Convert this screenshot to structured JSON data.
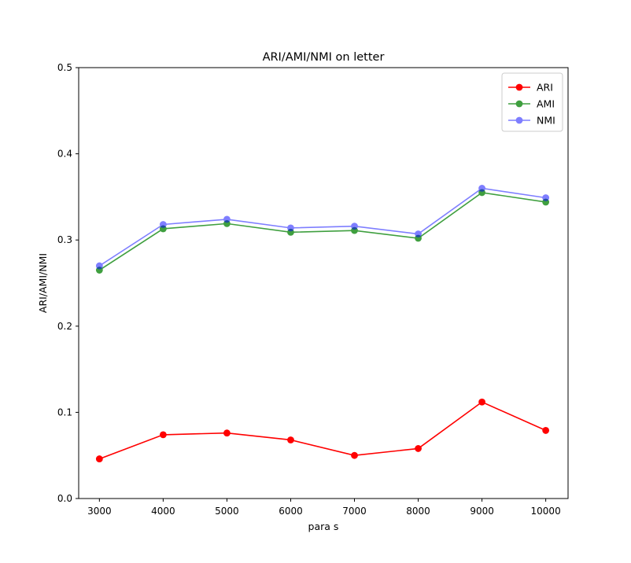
{
  "chart_data": {
    "type": "line",
    "title": "ARI/AMI/NMI on letter",
    "xlabel": "para s",
    "ylabel": "ARI/AMI/NMI",
    "x": [
      3000,
      4000,
      5000,
      6000,
      7000,
      8000,
      9000,
      10000
    ],
    "xlim": [
      2675,
      10350
    ],
    "ylim": [
      0.0,
      0.5
    ],
    "xticks": [
      "3000",
      "4000",
      "5000",
      "6000",
      "7000",
      "8000",
      "9000",
      "10000"
    ],
    "yticks": [
      "0.0",
      "0.1",
      "0.2",
      "0.3",
      "0.4",
      "0.5"
    ],
    "grid": false,
    "legend_position": "top-right",
    "series": [
      {
        "name": "ARI",
        "color": "#ff0000",
        "opacity": 1.0,
        "values": [
          0.046,
          0.074,
          0.076,
          0.068,
          0.05,
          0.058,
          0.112,
          0.079
        ]
      },
      {
        "name": "AMI",
        "color": "#008000",
        "opacity": 0.75,
        "values": [
          0.265,
          0.313,
          0.319,
          0.309,
          0.311,
          0.302,
          0.355,
          0.344
        ]
      },
      {
        "name": "NMI",
        "color": "#0000ff",
        "opacity": 0.5,
        "values": [
          0.27,
          0.318,
          0.324,
          0.314,
          0.316,
          0.307,
          0.36,
          0.349
        ]
      }
    ]
  }
}
